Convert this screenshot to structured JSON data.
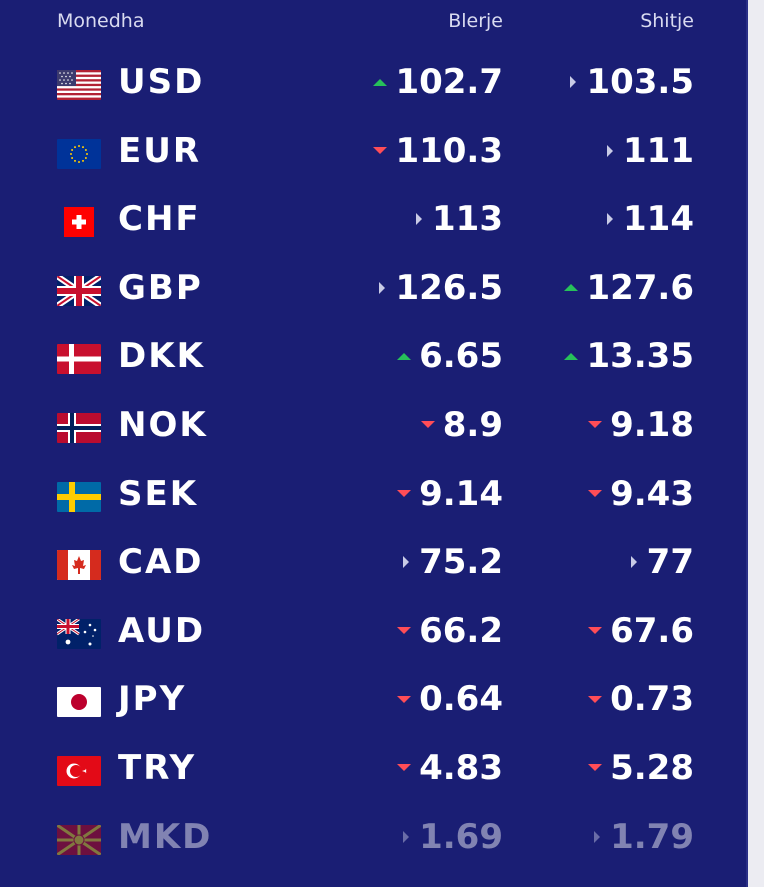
{
  "header": {
    "currency": "Monedha",
    "buy": "Blerje",
    "sell": "Shitje"
  },
  "colors": {
    "background": "#1a1e74",
    "up": "#27c15a",
    "down": "#ff4d57",
    "flat": "#c9cbe6"
  },
  "rows": [
    {
      "code": "USD",
      "flag": "us-flag-icon",
      "buy": "102.7",
      "buy_trend": "up",
      "sell": "103.5",
      "sell_trend": "flat"
    },
    {
      "code": "EUR",
      "flag": "eu-flag-icon",
      "buy": "110.3",
      "buy_trend": "down",
      "sell": "111",
      "sell_trend": "flat"
    },
    {
      "code": "CHF",
      "flag": "ch-flag-icon",
      "buy": "113",
      "buy_trend": "flat",
      "sell": "114",
      "sell_trend": "flat"
    },
    {
      "code": "GBP",
      "flag": "gb-flag-icon",
      "buy": "126.5",
      "buy_trend": "flat",
      "sell": "127.6",
      "sell_trend": "up"
    },
    {
      "code": "DKK",
      "flag": "dk-flag-icon",
      "buy": "6.65",
      "buy_trend": "up",
      "sell": "13.35",
      "sell_trend": "up"
    },
    {
      "code": "NOK",
      "flag": "no-flag-icon",
      "buy": "8.9",
      "buy_trend": "down",
      "sell": "9.18",
      "sell_trend": "down"
    },
    {
      "code": "SEK",
      "flag": "se-flag-icon",
      "buy": "9.14",
      "buy_trend": "down",
      "sell": "9.43",
      "sell_trend": "down"
    },
    {
      "code": "CAD",
      "flag": "ca-flag-icon",
      "buy": "75.2",
      "buy_trend": "flat",
      "sell": "77",
      "sell_trend": "flat"
    },
    {
      "code": "AUD",
      "flag": "au-flag-icon",
      "buy": "66.2",
      "buy_trend": "down",
      "sell": "67.6",
      "sell_trend": "down"
    },
    {
      "code": "JPY",
      "flag": "jp-flag-icon",
      "buy": "0.64",
      "buy_trend": "down",
      "sell": "0.73",
      "sell_trend": "down"
    },
    {
      "code": "TRY",
      "flag": "tr-flag-icon",
      "buy": "4.83",
      "buy_trend": "down",
      "sell": "5.28",
      "sell_trend": "down"
    },
    {
      "code": "MKD",
      "flag": "mk-flag-icon",
      "buy": "1.69",
      "buy_trend": "flat",
      "sell": "1.79",
      "sell_trend": "flat"
    }
  ]
}
